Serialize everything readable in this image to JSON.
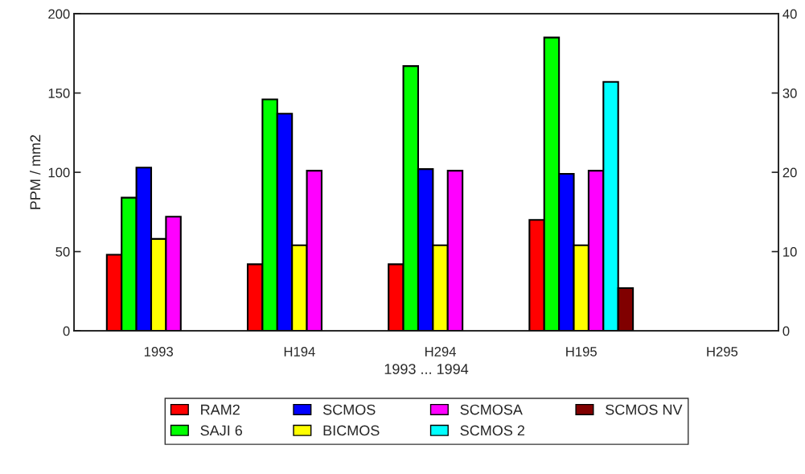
{
  "chart_data": {
    "type": "bar",
    "xlabel": "1993 ... 1994",
    "ylabel": "PPM / mm2",
    "categories": [
      "1993",
      "H194",
      "H294",
      "H195",
      "H295"
    ],
    "series": [
      {
        "name": "RAM2",
        "color": "#ff0000",
        "values": [
          48,
          42,
          42,
          70,
          null
        ]
      },
      {
        "name": "SAJI 6",
        "color": "#00ff00",
        "values": [
          84,
          146,
          167,
          185,
          null
        ]
      },
      {
        "name": "SCMOS",
        "color": "#0000ff",
        "values": [
          103,
          137,
          102,
          99,
          null
        ]
      },
      {
        "name": "BICMOS",
        "color": "#ffff00",
        "values": [
          58,
          54,
          54,
          54,
          null
        ]
      },
      {
        "name": "SCMOSA",
        "color": "#ff00ff",
        "values": [
          72,
          101,
          101,
          101,
          null
        ]
      },
      {
        "name": "SCMOS 2",
        "color": "#00ffff",
        "values": [
          null,
          null,
          null,
          157,
          null
        ]
      },
      {
        "name": "SCMOS NV",
        "color": "#800000",
        "values": [
          null,
          null,
          null,
          27,
          null
        ]
      }
    ],
    "ylim": [
      0,
      200
    ],
    "yticks": [
      0,
      50,
      100,
      150,
      200
    ],
    "y2lim": [
      0,
      40
    ],
    "y2ticks": [
      0,
      10,
      20,
      30,
      40
    ],
    "grid": false,
    "legend": "bottom"
  }
}
